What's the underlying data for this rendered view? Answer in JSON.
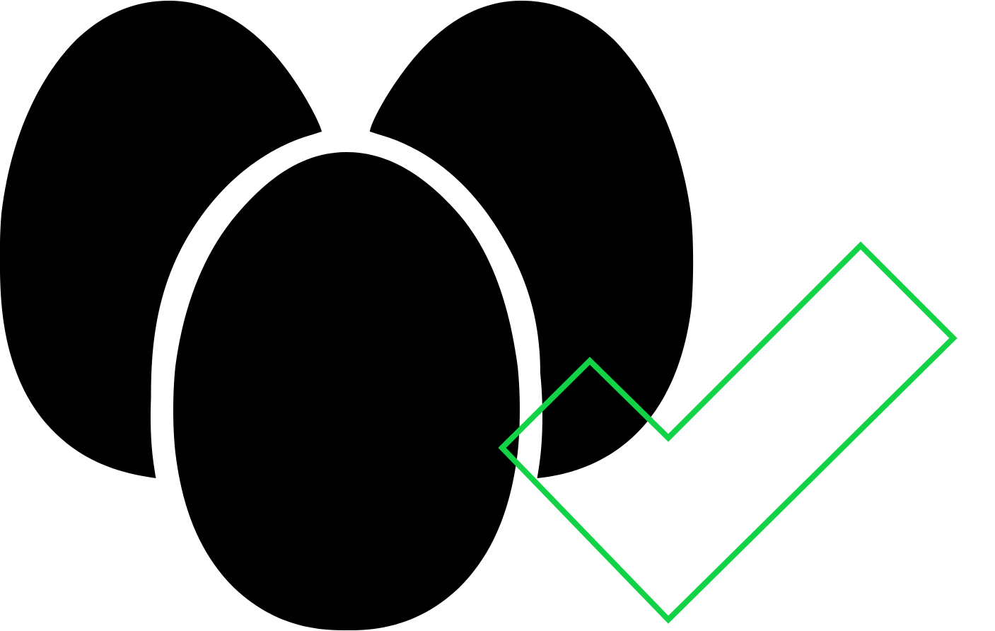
{
  "icon": {
    "name": "eggs-icon",
    "egg_count": 3,
    "fill_color": "#000000",
    "gap_color": "#ffffff"
  },
  "badge": {
    "name": "checkmark-icon",
    "stroke_color": "#12d246"
  }
}
